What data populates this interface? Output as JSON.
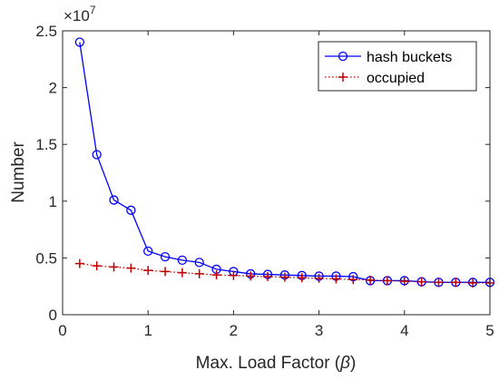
{
  "chart_data": {
    "type": "line",
    "xlabel": "Max. Load Factor (",
    "xlabel_symbol": "β",
    "xlabel_close": ")",
    "ylabel": "Number",
    "y_exponent_base": "×10",
    "y_exponent_power": "7",
    "xlim": [
      0,
      5
    ],
    "ylim": [
      0,
      2.5
    ],
    "x_ticks": [
      0,
      1,
      2,
      3,
      4,
      5
    ],
    "x_tick_labels": [
      "0",
      "1",
      "2",
      "3",
      "4",
      "5"
    ],
    "y_ticks": [
      0,
      0.5,
      1,
      1.5,
      2,
      2.5
    ],
    "y_tick_labels": [
      "0",
      "0.5",
      "1",
      "1.5",
      "2",
      "2.5"
    ],
    "grid": false,
    "legend_position": "top-right",
    "x": [
      0.2,
      0.4,
      0.6,
      0.8,
      1.0,
      1.2,
      1.4,
      1.6,
      1.8,
      2.0,
      2.2,
      2.4,
      2.6,
      2.8,
      3.0,
      3.2,
      3.4,
      3.6,
      3.8,
      4.0,
      4.2,
      4.4,
      4.6,
      4.8,
      5.0
    ],
    "series": [
      {
        "name": "hash buckets",
        "color": "#0000ff",
        "line_style": "solid",
        "marker": "circle",
        "values": [
          2.4,
          1.41,
          1.01,
          0.92,
          0.56,
          0.51,
          0.48,
          0.46,
          0.4,
          0.38,
          0.36,
          0.355,
          0.35,
          0.345,
          0.34,
          0.34,
          0.335,
          0.3,
          0.3,
          0.3,
          0.29,
          0.285,
          0.285,
          0.285,
          0.285
        ]
      },
      {
        "name": "occupied",
        "color": "#c00000",
        "line_style": "dotted",
        "marker": "plus",
        "values": [
          0.45,
          0.43,
          0.42,
          0.41,
          0.39,
          0.38,
          0.37,
          0.36,
          0.35,
          0.345,
          0.34,
          0.335,
          0.33,
          0.325,
          0.32,
          0.315,
          0.31,
          0.305,
          0.3,
          0.295,
          0.29,
          0.285,
          0.285,
          0.28,
          0.28
        ]
      }
    ]
  }
}
